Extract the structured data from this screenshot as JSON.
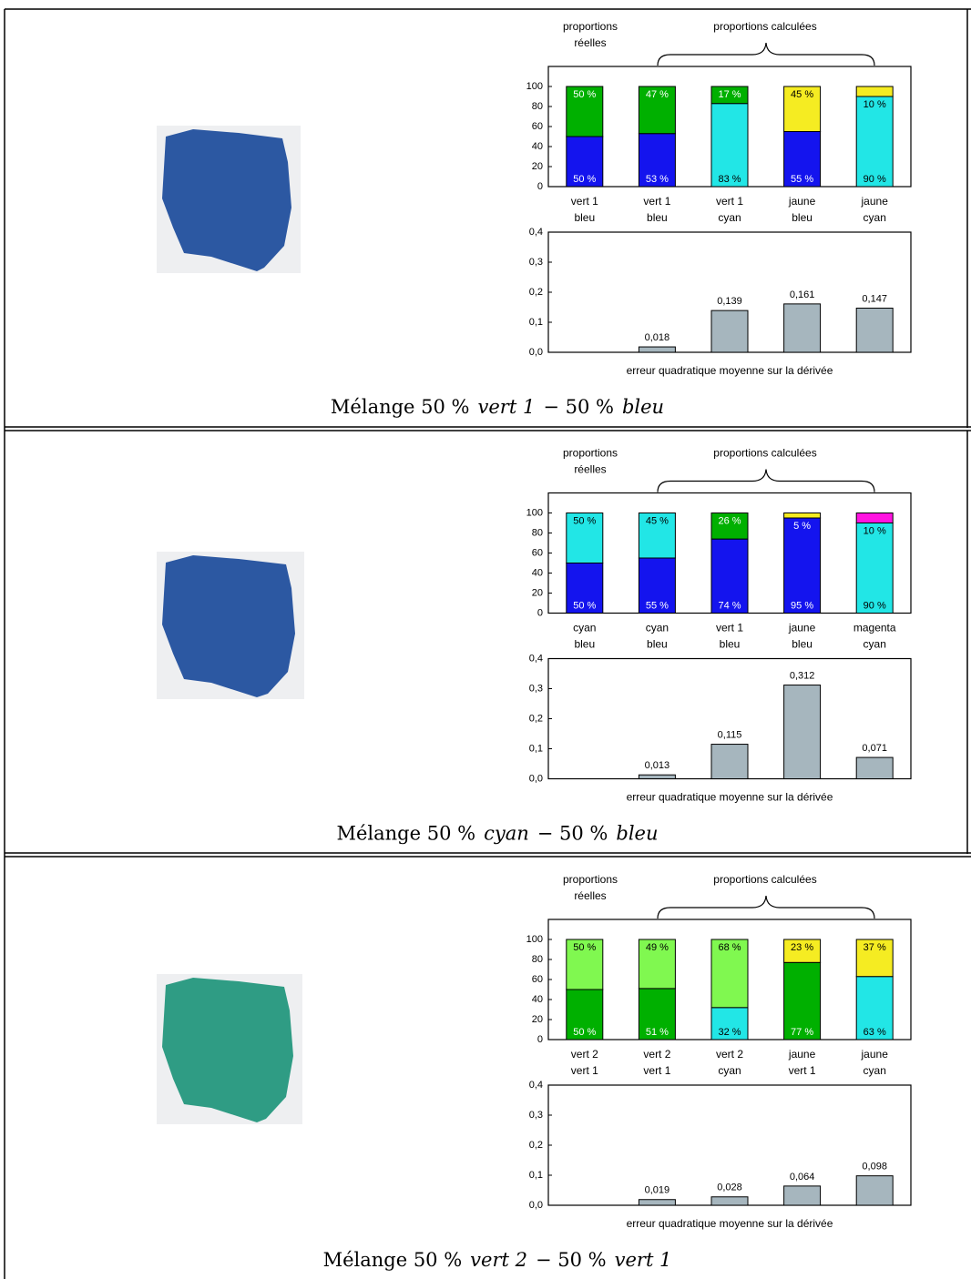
{
  "panels": [
    {
      "header": {
        "left": [
          "proportions",
          "réelles"
        ],
        "right": "proportions calculées"
      },
      "caption": [
        {
          "text": "Mélange 50 %"
        },
        {
          "text": "vert 1",
          "italic": true
        },
        {
          "text": "− 50 %"
        },
        {
          "text": "bleu",
          "italic": true
        }
      ]
    },
    {
      "header": {
        "left": [
          "proportions",
          "réelles"
        ],
        "right": "proportions calculées"
      },
      "caption": [
        {
          "text": "Mélange 50 %"
        },
        {
          "text": "cyan",
          "italic": true
        },
        {
          "text": "− 50 %"
        },
        {
          "text": "bleu",
          "italic": true
        }
      ]
    },
    {
      "header": {
        "left": [
          "proportions",
          "réelles"
        ],
        "right": "proportions calculées"
      },
      "caption": [
        {
          "text": "Mélange 50 %"
        },
        {
          "text": "vert 2",
          "italic": true
        },
        {
          "text": "− 50 %"
        },
        {
          "text": "vert 1",
          "italic": true
        }
      ]
    }
  ],
  "chart_data": [
    {
      "type": "stacked-bar",
      "categories": [
        [
          "vert 1",
          "bleu"
        ],
        [
          "vert 1",
          "bleu"
        ],
        [
          "vert 1",
          "cyan"
        ],
        [
          "jaune",
          "bleu"
        ],
        [
          "jaune",
          "cyan"
        ]
      ],
      "series": [
        {
          "colors": [
            "#1414ee",
            "#1414ee",
            "#22e6e6",
            "#1414ee",
            "#22e6e6"
          ],
          "values": [
            50,
            53,
            83,
            55,
            90
          ],
          "value_labels": [
            "50 %",
            "53 %",
            "83 %",
            "55 %",
            "90 %"
          ]
        },
        {
          "colors": [
            "#00b000",
            "#00b000",
            "#00b000",
            "#f5ec22",
            "#f5ec22"
          ],
          "values": [
            50,
            47,
            17,
            45,
            10
          ],
          "value_labels": [
            "50 %",
            "47 %",
            "17 %",
            "45 %",
            "10 %"
          ]
        }
      ],
      "ylim": [
        0,
        120
      ],
      "yticks": [
        0,
        20,
        40,
        60,
        80,
        100
      ]
    },
    {
      "type": "bar",
      "values": [
        0,
        0.018,
        0.139,
        0.161,
        0.147
      ],
      "value_labels": [
        null,
        "0,018",
        "0,139",
        "0,161",
        "0,147"
      ],
      "color": "#a6b6be",
      "ylim": [
        0,
        0.4
      ],
      "yticks": [
        {
          "value": 0,
          "label": "0,0"
        },
        {
          "value": 0.1,
          "label": "0,1"
        },
        {
          "value": 0.2,
          "label": "0,2"
        },
        {
          "value": 0.3,
          "label": "0,3"
        },
        {
          "value": 0.4,
          "label": "0,4"
        }
      ],
      "xlabel": "erreur quadratique moyenne sur la dérivée"
    },
    {
      "type": "stacked-bar",
      "categories": [
        [
          "cyan",
          "bleu"
        ],
        [
          "cyan",
          "bleu"
        ],
        [
          "vert 1",
          "bleu"
        ],
        [
          "jaune",
          "bleu"
        ],
        [
          "magenta",
          "cyan"
        ]
      ],
      "series": [
        {
          "colors": [
            "#1414ee",
            "#1414ee",
            "#1414ee",
            "#1414ee",
            "#22e6e6"
          ],
          "values": [
            50,
            55,
            74,
            95,
            90
          ],
          "value_labels": [
            "50 %",
            "55 %",
            "74 %",
            "95 %",
            "90 %"
          ]
        },
        {
          "colors": [
            "#22e6e6",
            "#22e6e6",
            "#00b000",
            "#f5ec22",
            "#ff14e0"
          ],
          "values": [
            50,
            45,
            26,
            5,
            10
          ],
          "value_labels": [
            "50 %",
            "45 %",
            "26 %",
            "5 %",
            "10 %"
          ]
        }
      ],
      "ylim": [
        0,
        120
      ],
      "yticks": [
        0,
        20,
        40,
        60,
        80,
        100
      ]
    },
    {
      "type": "bar",
      "values": [
        0,
        0.013,
        0.115,
        0.312,
        0.071
      ],
      "value_labels": [
        null,
        "0,013",
        "0,115",
        "0,312",
        "0,071"
      ],
      "color": "#a6b6be",
      "ylim": [
        0,
        0.4
      ],
      "yticks": [
        {
          "value": 0,
          "label": "0,0"
        },
        {
          "value": 0.1,
          "label": "0,1"
        },
        {
          "value": 0.2,
          "label": "0,2"
        },
        {
          "value": 0.3,
          "label": "0,3"
        },
        {
          "value": 0.4,
          "label": "0,4"
        }
      ],
      "xlabel": "erreur quadratique moyenne sur la dérivée"
    },
    {
      "type": "stacked-bar",
      "categories": [
        [
          "vert 2",
          "vert 1"
        ],
        [
          "vert 2",
          "vert 1"
        ],
        [
          "vert 2",
          "cyan"
        ],
        [
          "jaune",
          "vert 1"
        ],
        [
          "jaune",
          "cyan"
        ]
      ],
      "series": [
        {
          "colors": [
            "#00b000",
            "#00b000",
            "#22e6e6",
            "#00b000",
            "#22e6e6"
          ],
          "values": [
            50,
            51,
            32,
            77,
            63
          ],
          "value_labels": [
            "50 %",
            "51 %",
            "32 %",
            "77 %",
            "63 %"
          ]
        },
        {
          "colors": [
            "#80f850",
            "#80f850",
            "#80f850",
            "#f5ec22",
            "#f5ec22"
          ],
          "values": [
            50,
            49,
            68,
            23,
            37
          ],
          "value_labels": [
            "50 %",
            "49 %",
            "68 %",
            "23 %",
            "37 %"
          ]
        }
      ],
      "ylim": [
        0,
        120
      ],
      "yticks": [
        0,
        20,
        40,
        60,
        80,
        100
      ]
    },
    {
      "type": "bar",
      "values": [
        0,
        0.019,
        0.028,
        0.064,
        0.098
      ],
      "value_labels": [
        null,
        "0,019",
        "0,028",
        "0,064",
        "0,098"
      ],
      "color": "#a6b6be",
      "ylim": [
        0,
        0.4
      ],
      "yticks": [
        {
          "value": 0,
          "label": "0,0"
        },
        {
          "value": 0.1,
          "label": "0,1"
        },
        {
          "value": 0.2,
          "label": "0,2"
        },
        {
          "value": 0.3,
          "label": "0,3"
        },
        {
          "value": 0.4,
          "label": "0,4"
        }
      ],
      "xlabel": "erreur quadratique moyenne sur la dérivée"
    }
  ]
}
